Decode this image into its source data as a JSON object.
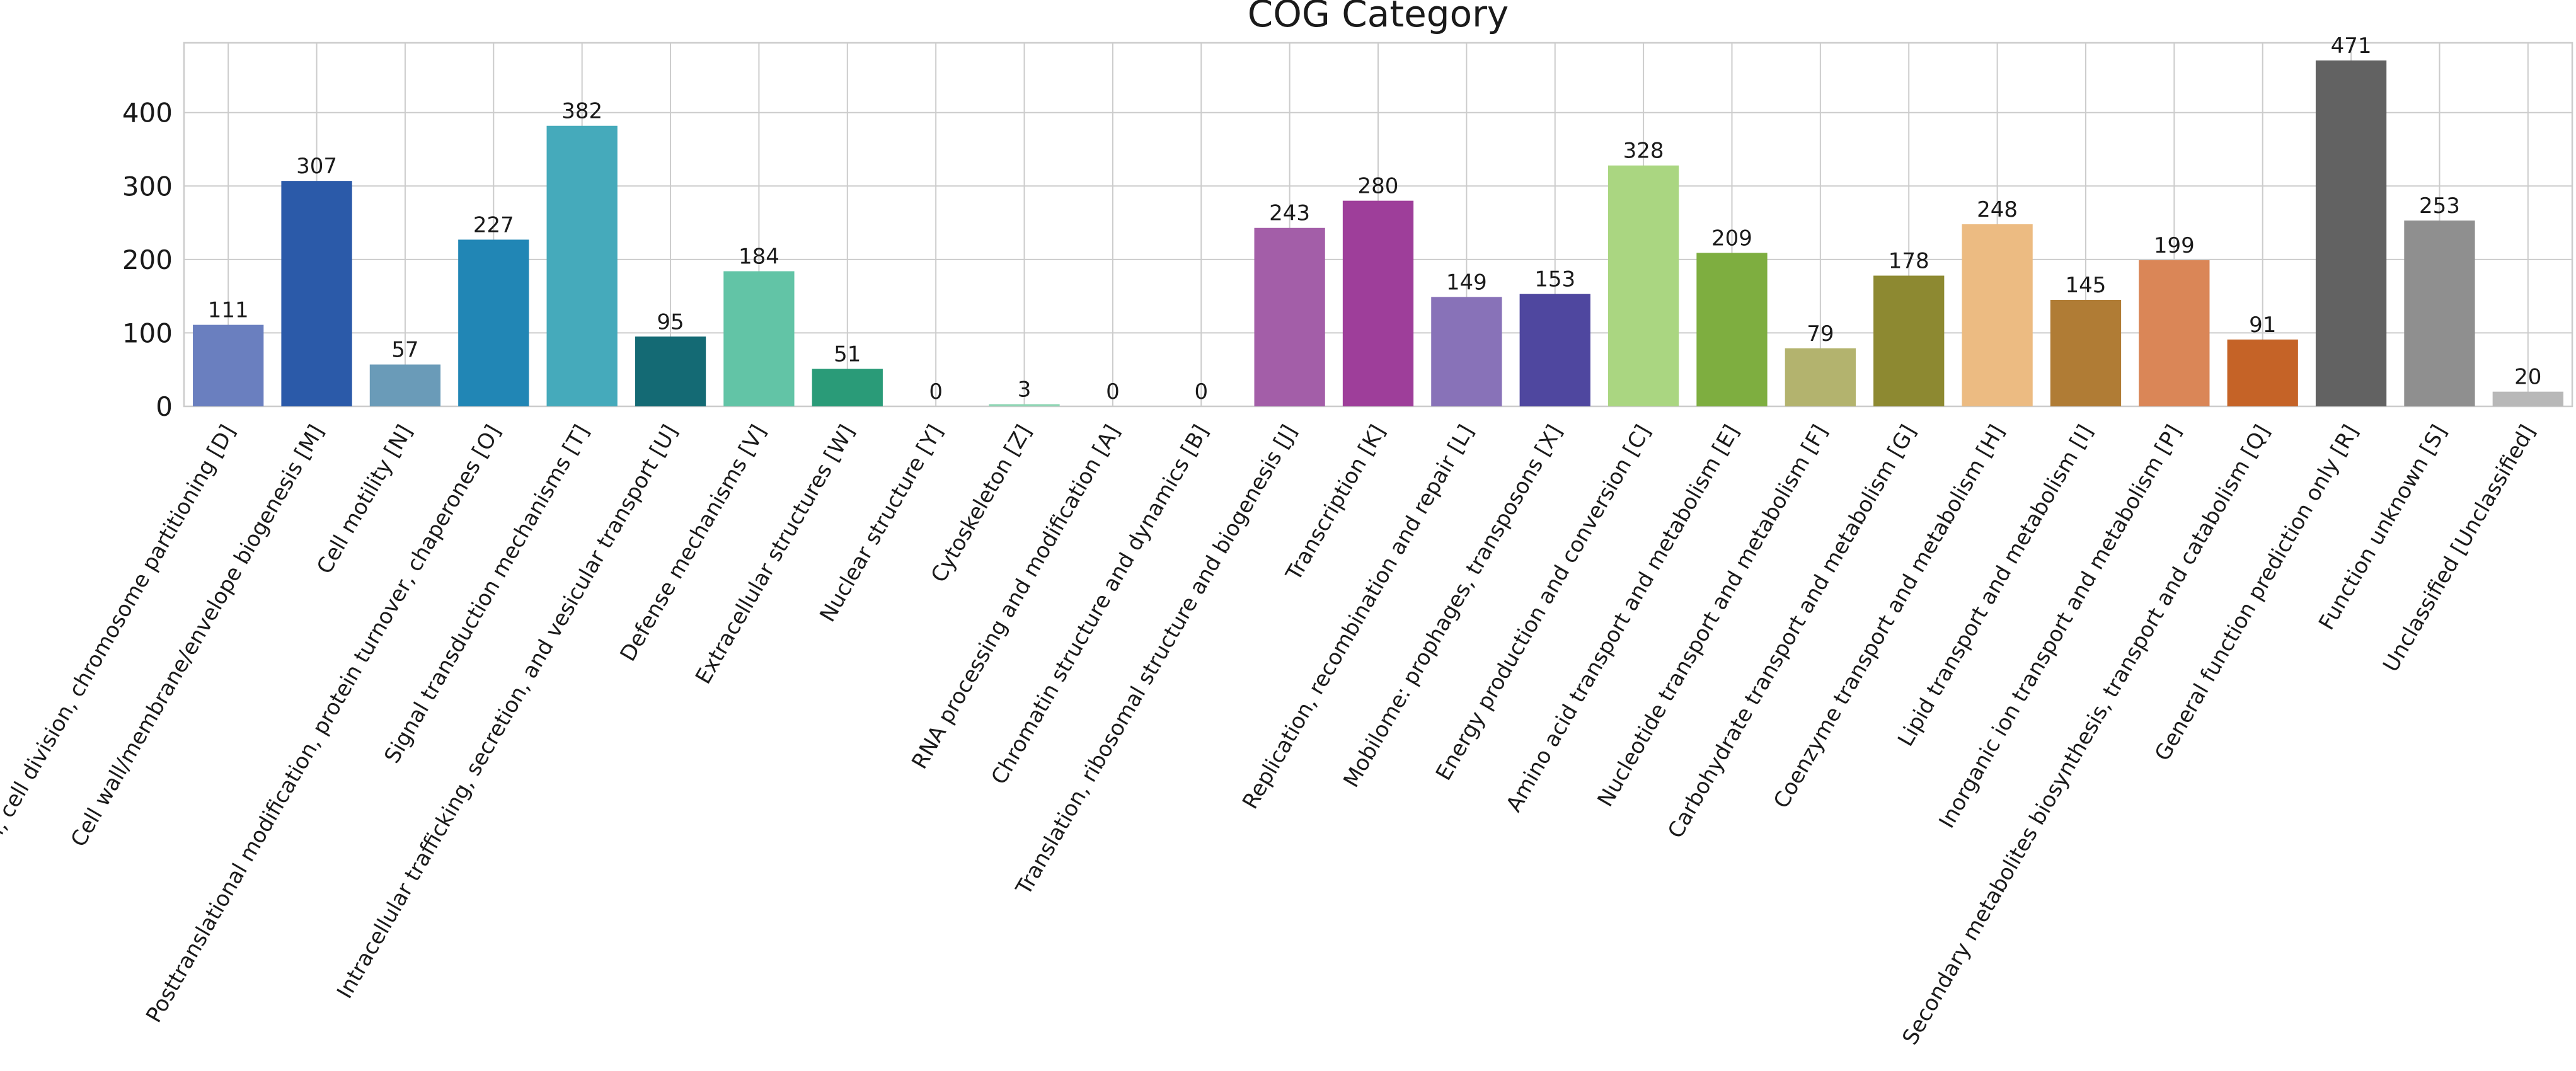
{
  "chart_data": {
    "type": "bar",
    "title": "COG Category",
    "xlabel": "",
    "ylabel": "",
    "ylim": [
      0,
      495
    ],
    "yticks": [
      0,
      100,
      200,
      300,
      400
    ],
    "grid": true,
    "categories": [
      "Cell cycle control, cell division, chromosome partitioning [D]",
      "Cell wall/membrane/envelope biogenesis [M]",
      "Cell motility [N]",
      "Posttranslational modification, protein turnover, chaperones [O]",
      "Signal transduction mechanisms [T]",
      "Intracellular trafficking, secretion, and vesicular transport [U]",
      "Defense mechanisms [V]",
      "Extracellular structures [W]",
      "Nuclear structure [Y]",
      "Cytoskeleton [Z]",
      "RNA processing and modification [A]",
      "Chromatin structure and dynamics [B]",
      "Translation, ribosomal structure and biogenesis [J]",
      "Transcription [K]",
      "Replication, recombination and repair [L]",
      "Mobilome: prophages, transposons [X]",
      "Energy production and conversion [C]",
      "Amino acid transport and metabolism [E]",
      "Nucleotide transport and metabolism [F]",
      "Carbohydrate transport and metabolism [G]",
      "Coenzyme transport and metabolism [H]",
      "Lipid transport and metabolism [I]",
      "Inorganic ion transport and metabolism [P]",
      "Secondary metabolites biosynthesis, transport and catabolism [Q]",
      "General function prediction only [R]",
      "Function unknown [S]",
      "Unclassified [Unclassified]"
    ],
    "values": [
      111,
      307,
      57,
      227,
      382,
      95,
      184,
      51,
      0,
      3,
      0,
      0,
      243,
      280,
      149,
      153,
      328,
      209,
      79,
      178,
      248,
      145,
      199,
      91,
      471,
      253,
      20
    ],
    "colors": [
      "#6a7fbf",
      "#2b5aa9",
      "#6a9bb8",
      "#2186b5",
      "#45aabb",
      "#146a74",
      "#62c4a6",
      "#2a9b78",
      "#9ad4b8",
      "#8fd6b4",
      "#a8d8c0",
      "#b8dcc8",
      "#a35ea8",
      "#9e3e9a",
      "#8872b8",
      "#4f479f",
      "#aad681",
      "#7eae40",
      "#b3b36e",
      "#8d8931",
      "#ecbb82",
      "#b07c35",
      "#da8657",
      "#c56327",
      "#626262",
      "#8f8f8f",
      "#b8b8b8"
    ]
  }
}
